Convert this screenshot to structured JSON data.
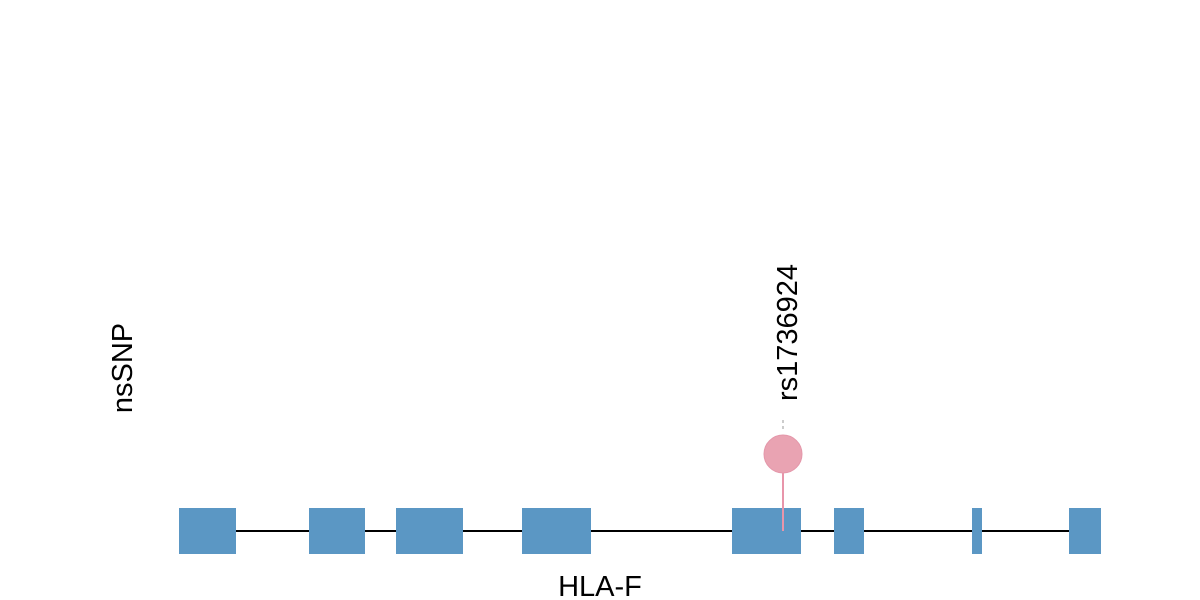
{
  "track_label": "nsSNP",
  "gene": {
    "label": "HLA-F"
  },
  "snps": [
    {
      "label": "rs1736924"
    }
  ]
}
